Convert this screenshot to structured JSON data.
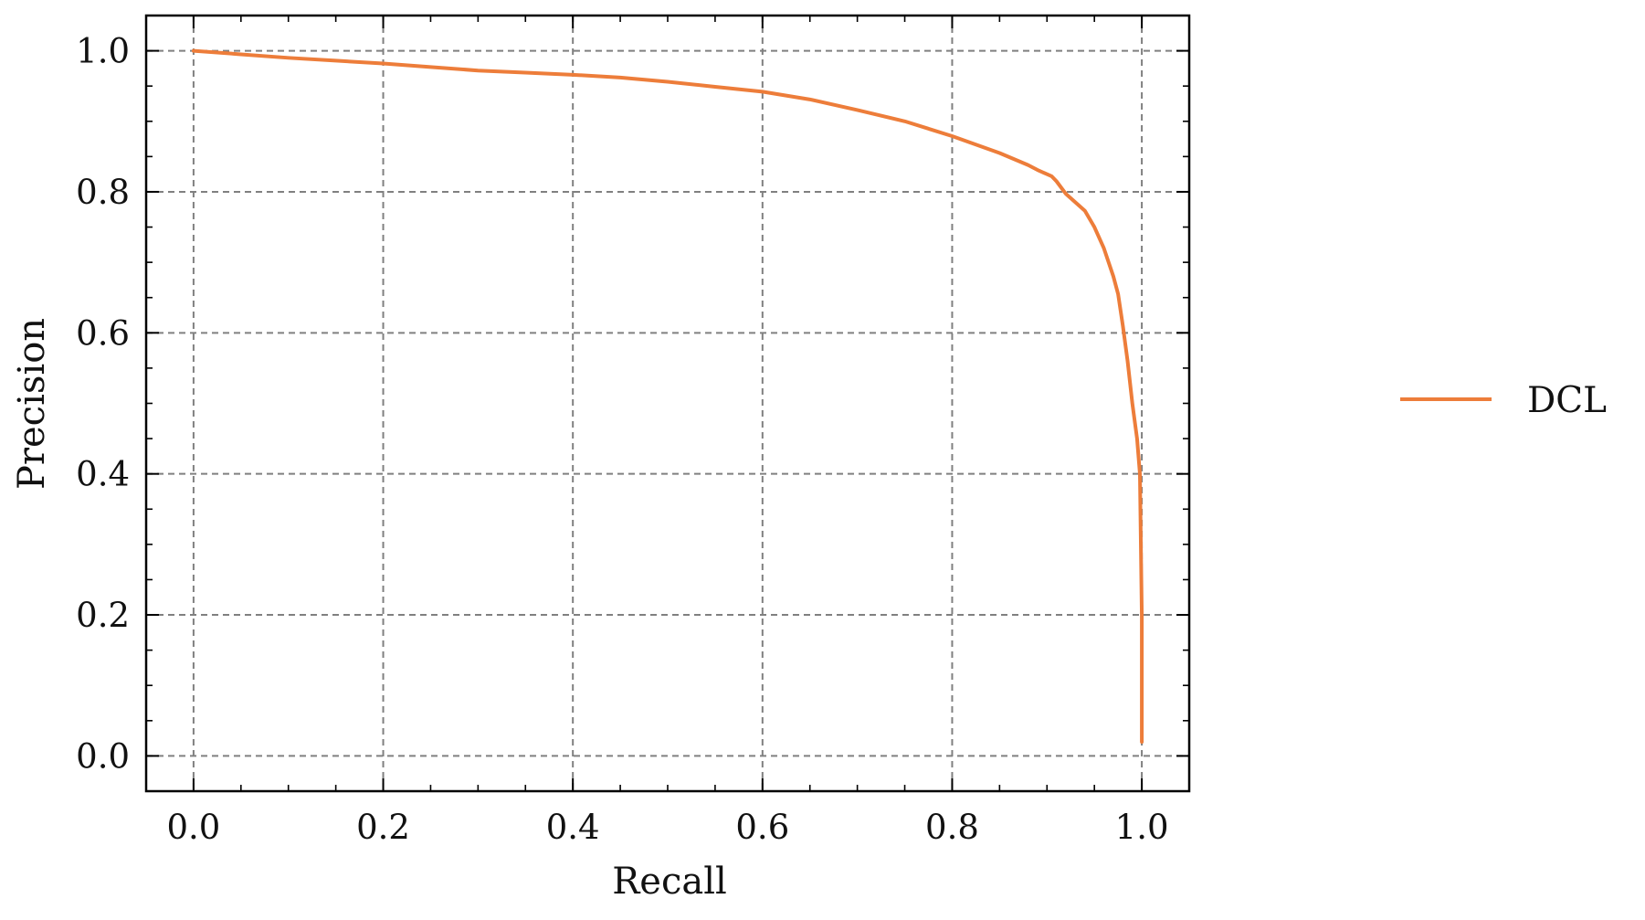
{
  "chart_data": {
    "type": "line",
    "title": "",
    "xlabel": "Recall",
    "ylabel": "Precision",
    "xlim": [
      -0.05,
      1.05
    ],
    "ylim": [
      -0.05,
      1.05
    ],
    "xticks": [
      0.0,
      0.2,
      0.4,
      0.6,
      0.8,
      1.0
    ],
    "yticks": [
      0.0,
      0.2,
      0.4,
      0.6,
      0.8,
      1.0
    ],
    "xtick_labels": [
      "0.0",
      "0.2",
      "0.4",
      "0.6",
      "0.8",
      "1.0"
    ],
    "ytick_labels": [
      "0.0",
      "0.2",
      "0.4",
      "0.6",
      "0.8",
      "1.0"
    ],
    "grid": true,
    "legend_position": "outside-right",
    "series": [
      {
        "name": "DCL",
        "color": "#ED7D3A",
        "x": [
          0.0,
          0.05,
          0.1,
          0.15,
          0.2,
          0.25,
          0.3,
          0.35,
          0.4,
          0.45,
          0.5,
          0.55,
          0.6,
          0.65,
          0.7,
          0.75,
          0.8,
          0.85,
          0.88,
          0.89,
          0.905,
          0.91,
          0.92,
          0.93,
          0.94,
          0.95,
          0.96,
          0.965,
          0.97,
          0.975,
          0.98,
          0.985,
          0.99,
          0.995,
          0.998,
          0.999,
          1.0,
          1.0,
          1.0
        ],
        "y": [
          1.0,
          0.995,
          0.99,
          0.986,
          0.982,
          0.977,
          0.972,
          0.969,
          0.966,
          0.962,
          0.956,
          0.949,
          0.942,
          0.931,
          0.916,
          0.9,
          0.879,
          0.855,
          0.838,
          0.831,
          0.822,
          0.815,
          0.797,
          0.785,
          0.773,
          0.75,
          0.72,
          0.7,
          0.68,
          0.655,
          0.61,
          0.56,
          0.5,
          0.45,
          0.4,
          0.3,
          0.2,
          0.1,
          0.02
        ]
      }
    ]
  }
}
